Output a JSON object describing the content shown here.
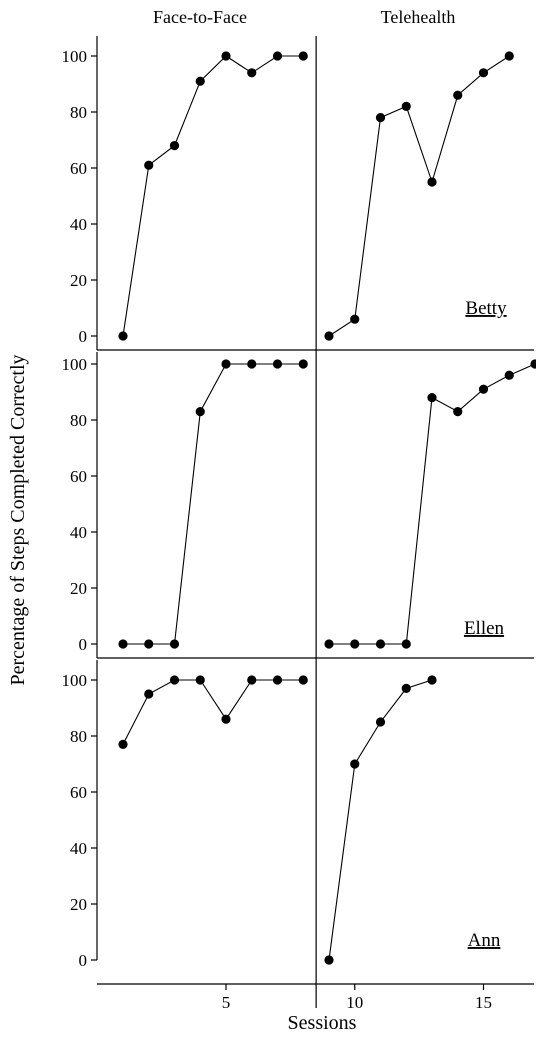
{
  "chart_data": {
    "type": "line",
    "phase_labels": [
      "Face-to-Face",
      "Telehealth"
    ],
    "ylabel": "Percentage of Steps  Completed  Correctly",
    "xlabel": "Sessions",
    "ylim": [
      0,
      100
    ],
    "xlim": [
      0,
      17
    ],
    "y_ticks": [
      "0",
      "20",
      "40",
      "60",
      "80",
      "100"
    ],
    "x_ticks": [
      "5",
      "10",
      "15"
    ],
    "phase_change_after_session": 8.5,
    "grid": false,
    "panels": [
      {
        "participant": "Betty",
        "series": [
          {
            "x": [
              1,
              2,
              3,
              4,
              5,
              6,
              7,
              8
            ],
            "values": [
              0,
              61,
              68,
              91,
              100,
              94,
              100,
              100
            ]
          },
          {
            "x": [
              9,
              10,
              11,
              12,
              13,
              14,
              15,
              16
            ],
            "values": [
              0,
              6,
              78,
              82,
              55,
              86,
              94,
              100
            ]
          }
        ]
      },
      {
        "participant": "Ellen",
        "series": [
          {
            "x": [
              1,
              2,
              3,
              4,
              5,
              6,
              7,
              8
            ],
            "values": [
              0,
              0,
              0,
              83,
              100,
              100,
              100,
              100
            ]
          },
          {
            "x": [
              9,
              10,
              11,
              12,
              13,
              14,
              15,
              16,
              17
            ],
            "values": [
              0,
              0,
              0,
              0,
              88,
              83,
              91,
              96,
              100
            ]
          }
        ]
      },
      {
        "participant": "Ann",
        "series": [
          {
            "x": [
              1,
              2,
              3,
              4,
              5,
              6,
              7,
              8
            ],
            "values": [
              77,
              95,
              100,
              100,
              86,
              100,
              100,
              100
            ]
          },
          {
            "x": [
              9,
              10,
              11,
              12,
              13
            ],
            "values": [
              0,
              70,
              85,
              97,
              100
            ]
          }
        ]
      }
    ]
  }
}
